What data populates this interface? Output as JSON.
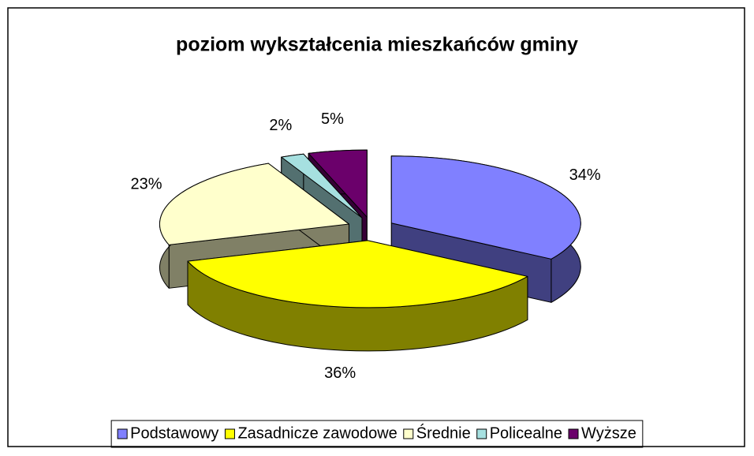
{
  "chart_data": {
    "type": "pie3d",
    "title": "poziom wykształcenia mieszkańców gminy",
    "categories": [
      "Podstawowy",
      "Zasadnicze zawodowe",
      "Średnie",
      "Policealne",
      "Wyższe"
    ],
    "values": [
      34,
      36,
      23,
      2,
      5
    ],
    "value_labels": [
      "34%",
      "36%",
      "23%",
      "2%",
      "5%"
    ],
    "colors": [
      "#8080ff",
      "#ffff00",
      "#ffffcc",
      "#a6e0e0",
      "#6b006b"
    ],
    "legend": "bottom"
  }
}
